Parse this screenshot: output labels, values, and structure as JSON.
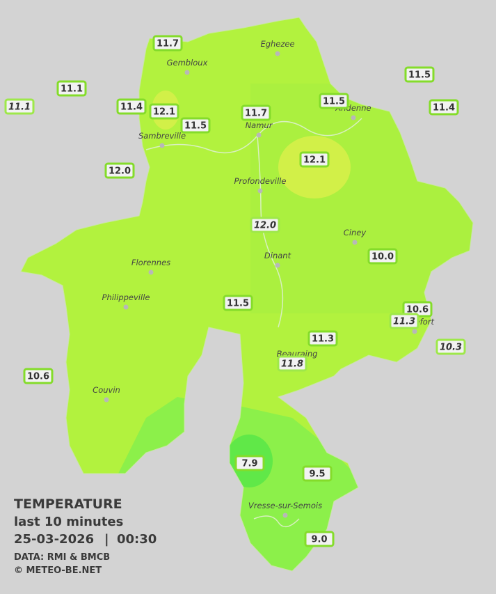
{
  "map": {
    "towns": [
      "Eghezee",
      "Gembloux",
      "Andenne",
      "Namur",
      "Sambreville",
      "Profondeville",
      "Ciney",
      "Dinant",
      "Florennes",
      "Philippeville",
      "Rochefort",
      "Beauraing",
      "Couvin",
      "Vresse-sur-Semois"
    ],
    "stations": [
      "11.7",
      "11.1",
      "11.1",
      "11.4",
      "12.1",
      "11.5",
      "11.7",
      "11.5",
      "11.5",
      "11.4",
      "12.0",
      "12.1",
      "12.0",
      "10.0",
      "11.5",
      "10.6",
      "11.3",
      "11.3",
      "11.8",
      "10.3",
      "10.6",
      "7.9",
      "9.5",
      "9.0"
    ]
  },
  "caption": {
    "title": "TEMPERATURE",
    "subtitle": "last 10 minutes",
    "date": "25-03-2026",
    "separator": "|",
    "time": "00:30",
    "source": "DATA: RMI & BMCB",
    "copyright": "© METEO-BE.NET"
  }
}
